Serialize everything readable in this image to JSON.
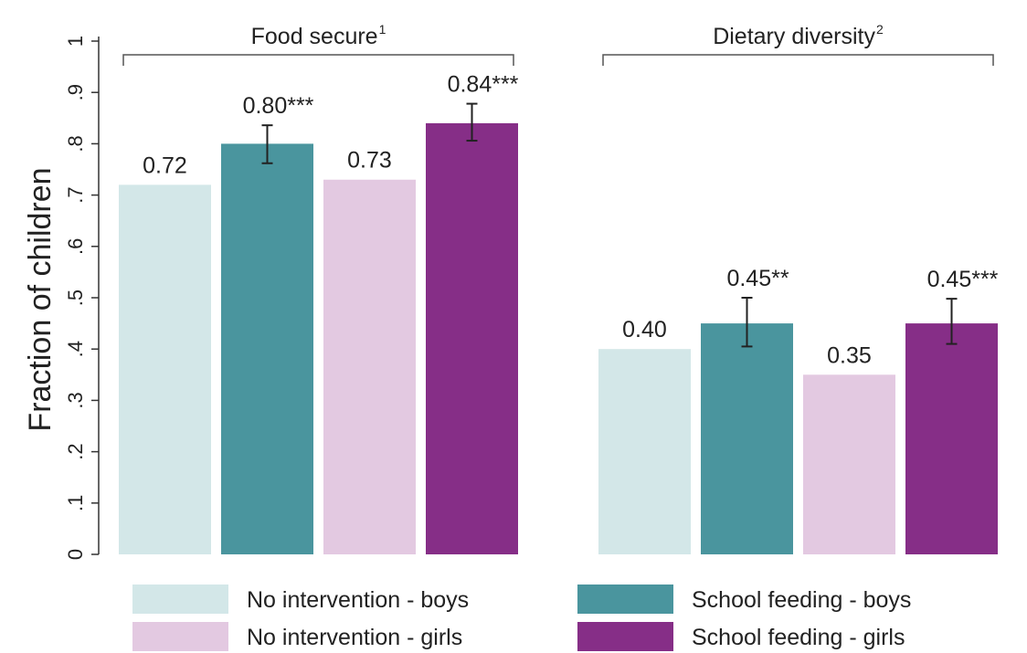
{
  "chart_data": {
    "type": "bar",
    "ylabel": "Fraction of children",
    "ylim": [
      0,
      1
    ],
    "yticks": [
      {
        "value": 0,
        "label": "0"
      },
      {
        "value": 0.1,
        "label": ".1"
      },
      {
        "value": 0.2,
        "label": ".2"
      },
      {
        "value": 0.3,
        "label": ".3"
      },
      {
        "value": 0.4,
        "label": ".4"
      },
      {
        "value": 0.5,
        "label": ".5"
      },
      {
        "value": 0.6,
        "label": ".6"
      },
      {
        "value": 0.7,
        "label": ".7"
      },
      {
        "value": 0.8,
        "label": ".8"
      },
      {
        "value": 0.9,
        "label": ".9"
      },
      {
        "value": 1,
        "label": "1"
      }
    ],
    "grid": false,
    "legend_position": "bottom",
    "groups": [
      {
        "label": "Food secure",
        "superscript": "1"
      },
      {
        "label": "Dietary diversity",
        "superscript": "2"
      }
    ],
    "series": [
      {
        "name": "No intervention - boys",
        "color": "#d3e7e8",
        "values": [
          0.72,
          0.4
        ],
        "labels": [
          "0.72",
          "0.40"
        ],
        "ci": [
          null,
          null
        ]
      },
      {
        "name": "School feeding - boys",
        "color": "#4a959e",
        "values": [
          0.8,
          0.45
        ],
        "labels": [
          "0.80***",
          "0.45**"
        ],
        "ci": [
          [
            0.762,
            0.836
          ],
          [
            0.405,
            0.5
          ]
        ]
      },
      {
        "name": "No intervention - girls",
        "color": "#e3c9e1",
        "values": [
          0.73,
          0.35
        ],
        "labels": [
          "0.73",
          "0.35"
        ],
        "ci": [
          null,
          null
        ]
      },
      {
        "name": "School feeding - girls",
        "color": "#862e87",
        "values": [
          0.84,
          0.45
        ],
        "labels": [
          "0.84***",
          "0.45***"
        ],
        "ci": [
          [
            0.806,
            0.878
          ],
          [
            0.41,
            0.498
          ]
        ]
      }
    ],
    "legend_order": [
      0,
      1,
      2,
      3
    ]
  }
}
